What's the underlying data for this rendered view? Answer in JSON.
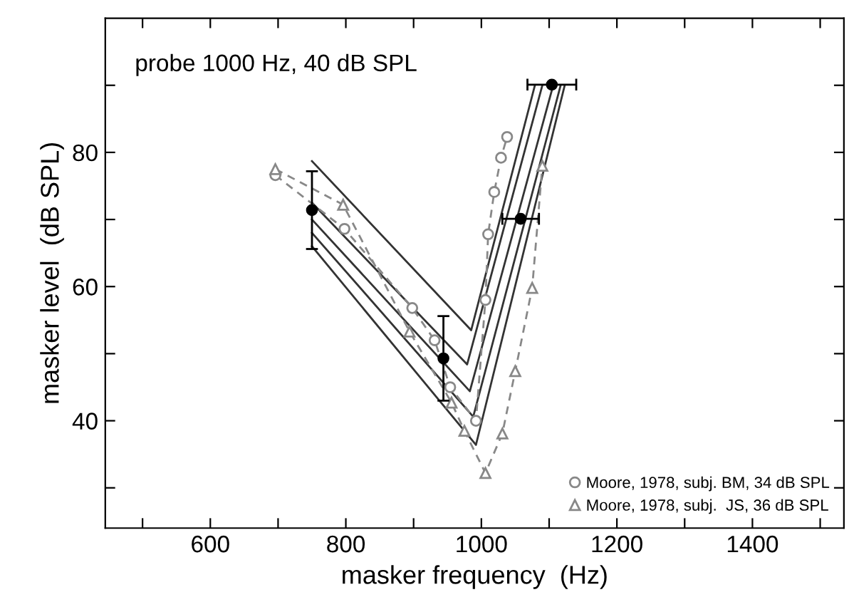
{
  "chart_data": {
    "type": "line",
    "title": "probe 1000 Hz, 40 dB SPL",
    "xlabel": "masker frequency  (Hz)",
    "ylabel": "masker level  (dB SPL)",
    "xlim": [
      445,
      1535
    ],
    "ylim": [
      24,
      100
    ],
    "xticks": [
      {
        "value": 500,
        "label": null
      },
      600,
      {
        "value": 700,
        "label": null
      },
      800,
      {
        "value": 900,
        "label": null
      },
      1000,
      {
        "value": 1100,
        "label": null
      },
      1200,
      {
        "value": 1300,
        "label": null
      },
      1400,
      {
        "value": 1500,
        "label": null
      }
    ],
    "yticks": [
      {
        "value": 30,
        "label": null
      },
      40,
      {
        "value": 50,
        "label": null
      },
      60,
      {
        "value": 70,
        "label": null
      },
      80,
      {
        "value": 90,
        "label": null
      }
    ],
    "grid": false,
    "legend": "bottom right",
    "series": [
      {
        "color": "#333333",
        "marker": "none",
        "line_style": "solid",
        "x": [
          750,
          985,
          1079
        ],
        "values": [
          78.7,
          53.5,
          90
        ]
      },
      {
        "color": "#333333",
        "marker": "none",
        "line_style": "solid",
        "x": [
          750,
          979,
          1090
        ],
        "values": [
          72.5,
          48.4,
          90
        ]
      },
      {
        "color": "#333333",
        "marker": "none",
        "line_style": "solid",
        "x": [
          750,
          983,
          1106
        ],
        "values": [
          70,
          44.4,
          90
        ]
      },
      {
        "color": "#333333",
        "marker": "none",
        "line_style": "solid",
        "x": [
          750,
          988,
          1117
        ],
        "values": [
          68,
          40.6,
          90
        ]
      },
      {
        "color": "#333333",
        "marker": "none",
        "line_style": "solid",
        "x": [
          750,
          992,
          1123
        ],
        "values": [
          66,
          36.4,
          90
        ]
      },
      {
        "name": "Moore, 1978, subj. BM, 34 dB SPL",
        "color": "#888888",
        "marker": "circle",
        "line_style": "dashed",
        "x": [
          696,
          798,
          898,
          931,
          954,
          992,
          1006,
          1010,
          1019,
          1029,
          1038
        ],
        "values": [
          76.6,
          68.6,
          56.8,
          52,
          45,
          40,
          58,
          67.8,
          74.1,
          79.2,
          82.3
        ]
      },
      {
        "name": "Moore, 1978, subj.  JS, 36 dB SPL",
        "color": "#888888",
        "marker": "triangle",
        "line_style": "dashed",
        "x": [
          696,
          796,
          894,
          956,
          975,
          1006,
          1031,
          1050,
          1075,
          1090
        ],
        "values": [
          77.5,
          72.2,
          53.3,
          42.7,
          38.5,
          32.2,
          38.1,
          47.4,
          59.8,
          78
        ]
      },
      {
        "type": "scatter",
        "color": "#000000",
        "marker": "circle",
        "x": [
          750,
          944,
          1058,
          1104
        ],
        "values": [
          71.4,
          49.3,
          70.1,
          90.1
        ],
        "errors": [
          5.8,
          6.3,
          null,
          null
        ],
        "xerrors": [
          null,
          null,
          27,
          36
        ]
      }
    ]
  }
}
